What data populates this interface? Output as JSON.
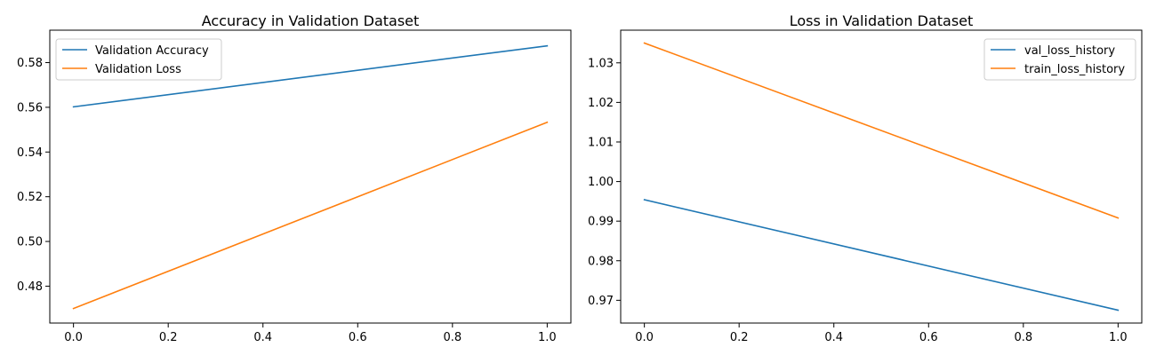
{
  "colors": {
    "blue": "#1f77b4",
    "orange": "#ff7f0e"
  },
  "chart_data": [
    {
      "type": "line",
      "title": "Accuracy in Validation Dataset",
      "xlabel": "",
      "ylabel": "",
      "xlim": [
        -0.05,
        1.05
      ],
      "ylim": [
        0.4635,
        0.5945
      ],
      "xticks": [
        0.0,
        0.2,
        0.4,
        0.6,
        0.8,
        1.0
      ],
      "xtick_labels": [
        "0.0",
        "0.2",
        "0.4",
        "0.6",
        "0.8",
        "1.0"
      ],
      "yticks": [
        0.48,
        0.5,
        0.52,
        0.54,
        0.56,
        0.58
      ],
      "ytick_labels": [
        "0.48",
        "0.50",
        "0.52",
        "0.54",
        "0.56",
        "0.58"
      ],
      "grid": false,
      "legend_position": "upper-left",
      "series": [
        {
          "name": "Validation Accuracy",
          "color": "#1f77b4",
          "x": [
            0,
            1
          ],
          "y": [
            0.5602,
            0.5875
          ]
        },
        {
          "name": "Validation Loss",
          "color": "#ff7f0e",
          "x": [
            0,
            1
          ],
          "y": [
            0.47,
            0.5533
          ]
        }
      ]
    },
    {
      "type": "line",
      "title": "Loss in Validation Dataset",
      "xlabel": "",
      "ylabel": "",
      "xlim": [
        -0.05,
        1.05
      ],
      "ylim": [
        0.96425,
        1.03825
      ],
      "xticks": [
        0.0,
        0.2,
        0.4,
        0.6,
        0.8,
        1.0
      ],
      "xtick_labels": [
        "0.0",
        "0.2",
        "0.4",
        "0.6",
        "0.8",
        "1.0"
      ],
      "yticks": [
        0.97,
        0.98,
        0.99,
        1.0,
        1.01,
        1.02,
        1.03
      ],
      "ytick_labels": [
        "0.97",
        "0.98",
        "0.99",
        "1.00",
        "1.01",
        "1.02",
        "1.03"
      ],
      "grid": false,
      "legend_position": "upper-right",
      "series": [
        {
          "name": "val_loss_history",
          "color": "#1f77b4",
          "x": [
            0,
            1
          ],
          "y": [
            0.9954,
            0.9675
          ]
        },
        {
          "name": "train_loss_history",
          "color": "#ff7f0e",
          "x": [
            0,
            1
          ],
          "y": [
            1.035,
            0.9908
          ]
        }
      ]
    }
  ]
}
